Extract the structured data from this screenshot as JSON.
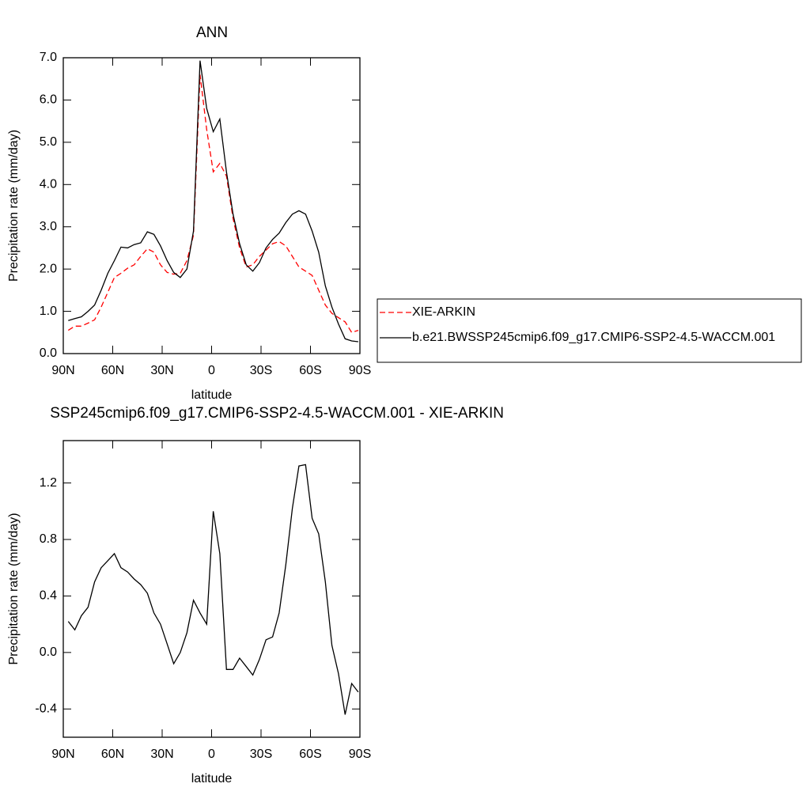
{
  "chart_data": [
    {
      "type": "line",
      "title": "ANN",
      "x_label": "latitude",
      "y_label": "Precipitation rate (mm/day)",
      "x": [
        87,
        83,
        79,
        75,
        71,
        67,
        63,
        59,
        55,
        51,
        47,
        43,
        39,
        35,
        31,
        27,
        23,
        19,
        15,
        11,
        7,
        3,
        -1,
        -5,
        -9,
        -13,
        -17,
        -21,
        -25,
        -29,
        -33,
        -37,
        -41,
        -45,
        -49,
        -53,
        -57,
        -61,
        -65,
        -69,
        -73,
        -77,
        -81,
        -85,
        -89
      ],
      "series": [
        {
          "name": "XIE-ARKIN",
          "color": "#ff0000",
          "line_style": "dashed",
          "values": [
            0.55,
            0.65,
            0.65,
            0.72,
            0.8,
            1.1,
            1.45,
            1.8,
            1.9,
            2.02,
            2.1,
            2.3,
            2.48,
            2.4,
            2.1,
            1.92,
            1.88,
            1.9,
            2.2,
            2.8,
            6.6,
            5.3,
            4.3,
            4.5,
            4.2,
            3.2,
            2.5,
            2.05,
            2.1,
            2.3,
            2.45,
            2.6,
            2.65,
            2.55,
            2.3,
            2.05,
            1.95,
            1.85,
            1.5,
            1.15,
            0.95,
            0.85,
            0.75,
            0.5,
            0.55
          ]
        },
        {
          "name": "b.e21.BWSSP245cmip6.f09_g17.CMIP6-SSP2-4.5-WACCM.001",
          "color": "#000000",
          "line_style": "solid",
          "values": [
            0.78,
            0.83,
            0.87,
            1.0,
            1.15,
            1.5,
            1.9,
            2.2,
            2.52,
            2.5,
            2.58,
            2.62,
            2.88,
            2.82,
            2.55,
            2.2,
            1.92,
            1.8,
            2.0,
            2.9,
            6.93,
            5.8,
            5.25,
            5.55,
            4.3,
            3.3,
            2.6,
            2.1,
            1.95,
            2.15,
            2.5,
            2.7,
            2.85,
            3.1,
            3.3,
            3.38,
            3.3,
            2.9,
            2.4,
            1.6,
            1.1,
            0.7,
            0.35,
            0.3,
            0.28
          ]
        }
      ],
      "xlim": [
        90,
        -90
      ],
      "xticks": [
        {
          "value": 90,
          "label": "90N"
        },
        {
          "value": 60,
          "label": "60N"
        },
        {
          "value": 30,
          "label": "30N"
        },
        0,
        {
          "value": -30,
          "label": "30S"
        },
        {
          "value": -60,
          "label": "60S"
        },
        {
          "value": -90,
          "label": "90S"
        }
      ],
      "ylim": [
        0,
        7
      ],
      "yticks": [
        {
          "value": 0,
          "label": "0.0"
        },
        {
          "value": 1,
          "label": "1.0"
        },
        {
          "value": 2,
          "label": "2.0"
        },
        {
          "value": 3,
          "label": "3.0"
        },
        {
          "value": 4,
          "label": "4.0"
        },
        {
          "value": 5,
          "label": "5.0"
        },
        {
          "value": 6,
          "label": "6.0"
        },
        {
          "value": 7,
          "label": "7.0"
        }
      ],
      "legend": "outside-right"
    },
    {
      "type": "line",
      "title": "SSP245cmip6.f09_g17.CMIP6-SSP2-4.5-WACCM.001 - XIE-ARKIN",
      "x_label": "latitude",
      "y_label": "Precipitation rate (mm/day)",
      "x": [
        87,
        83,
        79,
        75,
        71,
        67,
        63,
        59,
        55,
        51,
        47,
        43,
        39,
        35,
        31,
        27,
        23,
        19,
        15,
        11,
        7,
        3,
        -1,
        -5,
        -9,
        -13,
        -17,
        -21,
        -25,
        -29,
        -33,
        -37,
        -41,
        -45,
        -49,
        -53,
        -57,
        -61,
        -65,
        -69,
        -73,
        -77,
        -81,
        -85,
        -89
      ],
      "color": "#000000",
      "values": [
        0.22,
        0.16,
        0.26,
        0.32,
        0.5,
        0.6,
        0.65,
        0.7,
        0.6,
        0.57,
        0.52,
        0.48,
        0.42,
        0.28,
        0.2,
        0.06,
        -0.08,
        0.0,
        0.14,
        0.37,
        0.28,
        0.2,
        1.0,
        0.7,
        -0.12,
        -0.12,
        -0.04,
        -0.1,
        -0.16,
        -0.05,
        0.09,
        0.11,
        0.28,
        0.62,
        1.02,
        1.32,
        1.33,
        0.95,
        0.84,
        0.5,
        0.05,
        -0.15,
        -0.44,
        -0.22,
        -0.28
      ],
      "xlim": [
        90,
        -90
      ],
      "xticks": [
        {
          "value": 90,
          "label": "90N"
        },
        {
          "value": 60,
          "label": "60N"
        },
        {
          "value": 30,
          "label": "30N"
        },
        0,
        {
          "value": -30,
          "label": "30S"
        },
        {
          "value": -60,
          "label": "60S"
        },
        {
          "value": -90,
          "label": "90S"
        }
      ],
      "ylim": [
        -0.6,
        1.5
      ],
      "yticks": [
        1.2,
        0.8,
        0.4,
        {
          "value": 0,
          "label": "0.0"
        },
        -0.4
      ]
    }
  ]
}
